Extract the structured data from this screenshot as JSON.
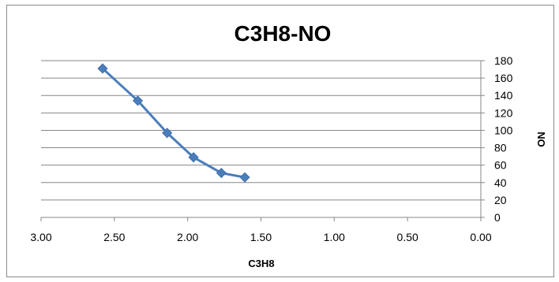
{
  "chart_data": {
    "type": "line",
    "title": "C3H8-NO",
    "xlabel": "C3H8",
    "ylabel": "NO",
    "x_reversed": true,
    "xlim": [
      0,
      3
    ],
    "ylim": [
      0,
      180
    ],
    "x_ticks": [
      "3.00",
      "2.50",
      "2.00",
      "1.50",
      "1.00",
      "0.50",
      "0.00"
    ],
    "y_ticks": [
      "180",
      "160",
      "140",
      "120",
      "100",
      "80",
      "60",
      "40",
      "20",
      "0"
    ],
    "y_axis_side": "right",
    "grid": "horizontal",
    "legend": "none",
    "series_color": "#4a7ebb",
    "series": [
      {
        "x": [
          2.58,
          2.34,
          2.14,
          1.96,
          1.77,
          1.61
        ],
        "y": [
          171,
          134,
          97,
          69,
          51,
          46
        ]
      }
    ]
  }
}
